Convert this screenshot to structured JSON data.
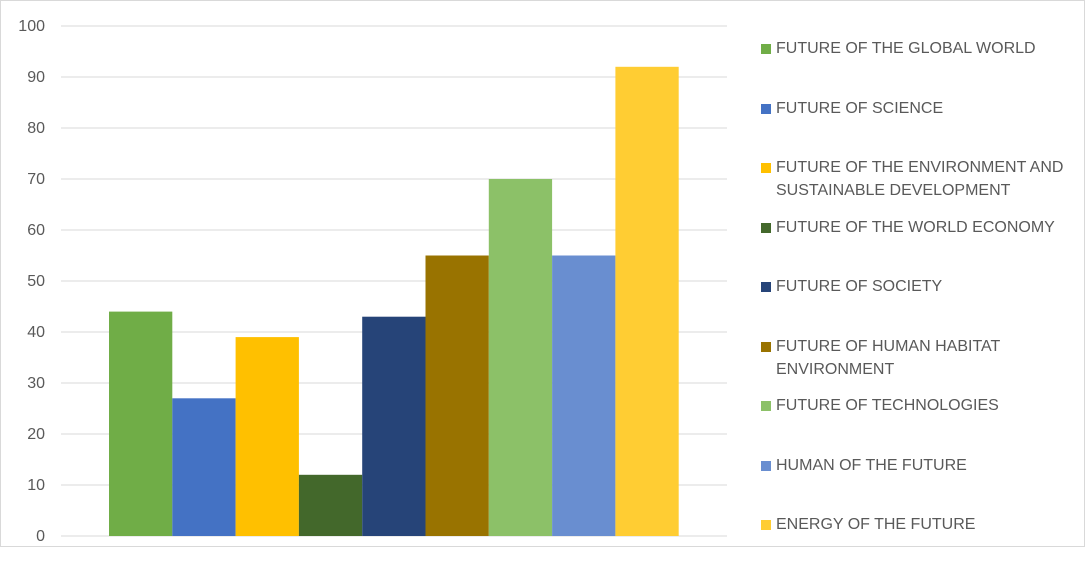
{
  "chart_data": {
    "type": "bar",
    "title": "",
    "xlabel": "",
    "ylabel": "",
    "ylim": [
      0,
      100
    ],
    "yticks": [
      0,
      10,
      20,
      30,
      40,
      50,
      60,
      70,
      80,
      90,
      100
    ],
    "grid": true,
    "legend_position": "right",
    "series": [
      {
        "name": "FUTURE OF THE GLOBAL WORLD",
        "value": 44,
        "color": "#70ad47"
      },
      {
        "name": "FUTURE OF SCIENCE",
        "value": 27,
        "color": "#4472c4"
      },
      {
        "name": "FUTURE OF THE ENVIRONMENT AND SUSTAINABLE DEVELOPMENT",
        "value": 39,
        "color": "#ffc000"
      },
      {
        "name": "FUTURE OF THE WORLD ECONOMY",
        "value": 12,
        "color": "#43682b"
      },
      {
        "name": "FUTURE OF SOCIETY",
        "value": 43,
        "color": "#264478"
      },
      {
        "name": "FUTURE OF HUMAN HABITAT ENVIRONMENT",
        "value": 55,
        "color": "#997300"
      },
      {
        "name": "FUTURE OF TECHNOLOGIES",
        "value": 70,
        "color": "#8cc168"
      },
      {
        "name": "HUMAN OF THE FUTURE",
        "value": 55,
        "color": "#698ed0"
      },
      {
        "name": "ENERGY OF THE FUTURE",
        "value": 92,
        "color": "#ffcd33"
      }
    ]
  }
}
